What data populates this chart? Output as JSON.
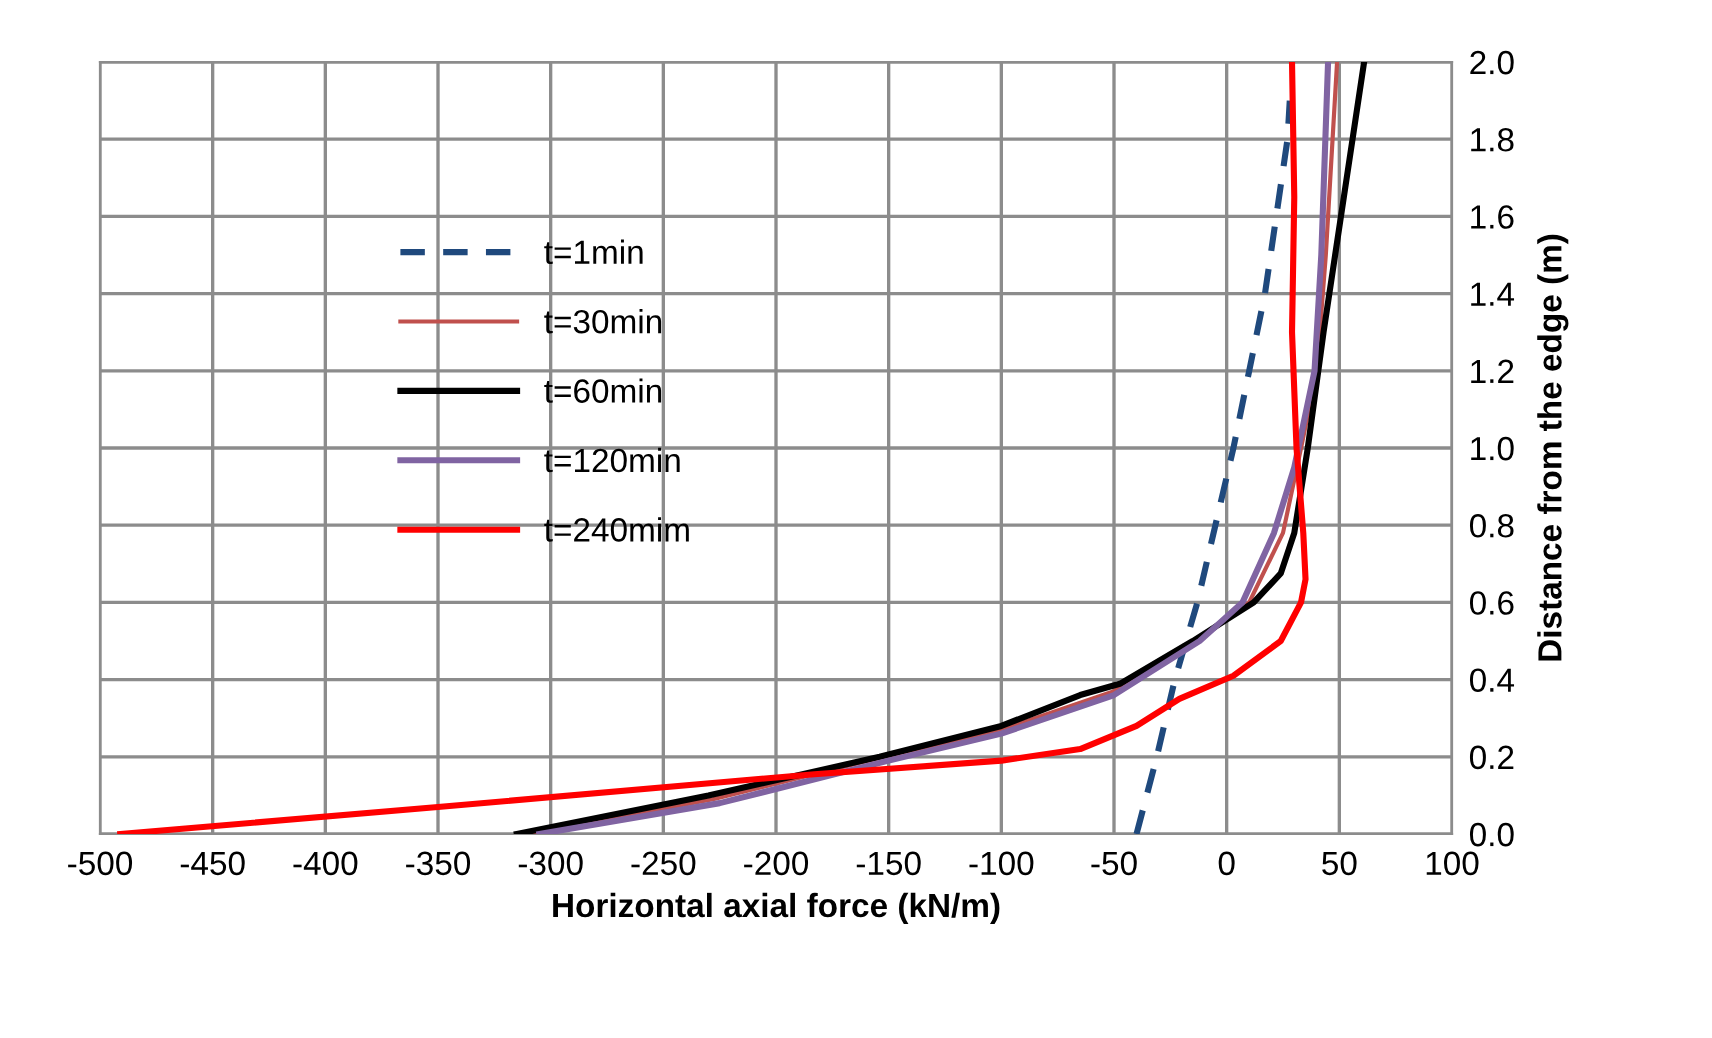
{
  "chart_data": {
    "type": "line",
    "xlabel": "Horizontal axial force (kN/m)",
    "ylabel": "Distance from the edge (m)",
    "xlim": [
      -500,
      100
    ],
    "xticks": [
      -500,
      -450,
      -400,
      -350,
      -300,
      -250,
      -200,
      -150,
      -100,
      -50,
      0,
      50,
      100
    ],
    "ylim": [
      0,
      2
    ],
    "yticks": [
      {
        "value": 0,
        "label": "0.0"
      },
      {
        "value": 0.2,
        "label": "0.2"
      },
      {
        "value": 0.4,
        "label": "0.4"
      },
      {
        "value": 0.6,
        "label": "0.6"
      },
      {
        "value": 0.8,
        "label": "0.8"
      },
      {
        "value": 1.0,
        "label": "1.0"
      },
      {
        "value": 1.2,
        "label": "1.2"
      },
      {
        "value": 1.4,
        "label": "1.4"
      },
      {
        "value": 1.6,
        "label": "1.6"
      },
      {
        "value": 1.8,
        "label": "1.8"
      },
      {
        "value": 2.0,
        "label": "2.0"
      }
    ],
    "grid": true,
    "legend": "left",
    "marker": "none",
    "series": [
      {
        "name": "t=1min",
        "color": "#1f497d",
        "line_style": "dashed",
        "x": [
          -40,
          -31,
          -23,
          -13,
          -5,
          3,
          10,
          17,
          22,
          27,
          28
        ],
        "values": [
          0,
          0.2,
          0.4,
          0.6,
          0.8,
          1.0,
          1.2,
          1.4,
          1.6,
          1.8,
          1.9
        ]
      },
      {
        "name": "t=30min",
        "color": "#c0504d",
        "line_style": "solid",
        "x": [
          -310,
          -228,
          -152,
          -100,
          -50,
          -13,
          10,
          25,
          33,
          40,
          44,
          49
        ],
        "values": [
          0,
          0.09,
          0.2,
          0.27,
          0.37,
          0.5,
          0.6,
          0.78,
          1.0,
          1.2,
          1.5,
          2.0
        ]
      },
      {
        "name": "t=60min",
        "color": "#000000",
        "line_style": "solid",
        "x": [
          -315,
          -230,
          -154,
          -100,
          -65,
          -47,
          -15,
          12,
          24,
          30,
          36,
          43,
          52,
          61
        ],
        "values": [
          0,
          0.1,
          0.2,
          0.28,
          0.36,
          0.39,
          0.5,
          0.6,
          0.675,
          0.78,
          1.0,
          1.3,
          1.65,
          2.0
        ]
      },
      {
        "name": "t=120min",
        "color": "#8064a2",
        "line_style": "solid",
        "x": [
          -305,
          -225,
          -150,
          -100,
          -50,
          -12,
          7,
          21,
          30,
          39,
          42,
          45
        ],
        "values": [
          0,
          0.08,
          0.19,
          0.26,
          0.36,
          0.5,
          0.6,
          0.78,
          0.95,
          1.2,
          1.5,
          2.0
        ]
      },
      {
        "name": "t=240mim",
        "color": "#ff0000",
        "line_style": "solid",
        "x": [
          -491,
          -350,
          -183,
          -100,
          -65,
          -40,
          -21,
          3,
          24,
          33,
          35,
          34,
          31,
          29,
          30,
          29
        ],
        "values": [
          0,
          0.07,
          0.155,
          0.19,
          0.22,
          0.28,
          0.35,
          0.41,
          0.5,
          0.6,
          0.66,
          0.78,
          1.0,
          1.3,
          1.65,
          2.0
        ]
      }
    ]
  }
}
